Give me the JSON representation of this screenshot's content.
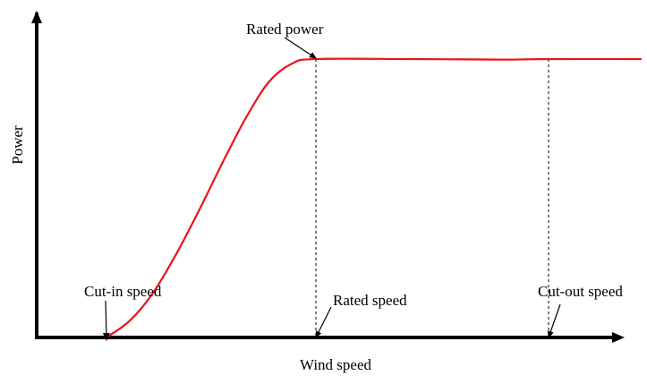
{
  "chart_data": {
    "type": "line",
    "title": "",
    "xlabel": "Wind speed",
    "ylabel": "Power",
    "series": [
      {
        "color": "#e8141b",
        "x": [
          1.5,
          2,
          2.5,
          3,
          3.5,
          4,
          4.5,
          5,
          5.5,
          6,
          8,
          10,
          11,
          13
        ],
        "y": [
          0,
          0.06,
          0.16,
          0.3,
          0.46,
          0.63,
          0.79,
          0.92,
          0.985,
          1.0,
          1.0,
          0.998,
          1.0,
          1.0
        ]
      }
    ],
    "xlim": [
      0,
      13
    ],
    "ylim": [
      0,
      1.15
    ],
    "annotations": [
      {
        "text": "Cut-in speed",
        "x": 1.5,
        "y": 0
      },
      {
        "text": "Rated speed",
        "x": 6,
        "y": 0
      },
      {
        "text": "Cut-out speed",
        "x": 11,
        "y": 0
      },
      {
        "text": "Rated power",
        "x": 6,
        "y": 1.0
      }
    ],
    "guides": [
      {
        "x": 6,
        "y_from": 0,
        "y_to": 1.0,
        "style": "dashed"
      },
      {
        "x": 11,
        "y_from": 0,
        "y_to": 1.0,
        "style": "dashed"
      }
    ],
    "grid": false,
    "legend": "none"
  }
}
